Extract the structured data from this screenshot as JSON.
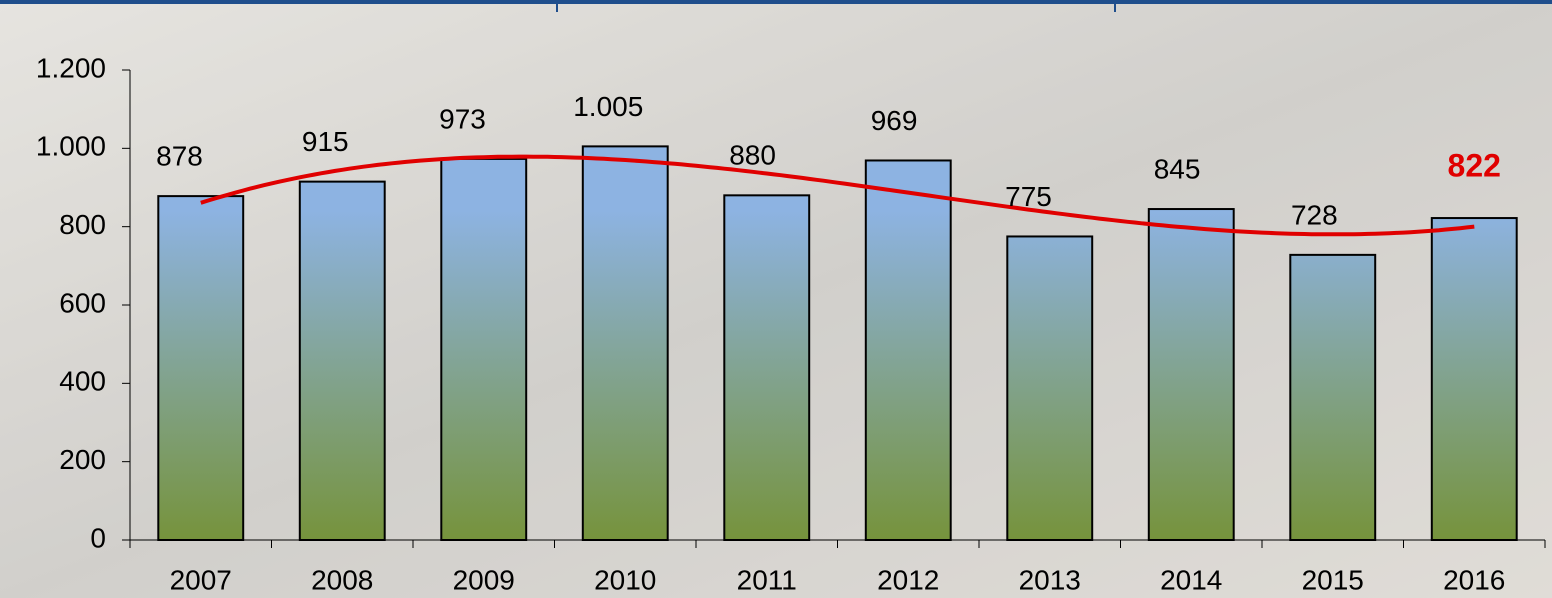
{
  "chart_data": {
    "type": "bar",
    "categories": [
      "2007",
      "2008",
      "2009",
      "2010",
      "2011",
      "2012",
      "2013",
      "2014",
      "2015",
      "2016"
    ],
    "values": [
      878,
      915,
      973,
      1005,
      880,
      969,
      775,
      845,
      728,
      822
    ],
    "value_labels": [
      "878",
      "915",
      "973",
      "1.005",
      "880",
      "969",
      "775",
      "845",
      "728",
      "822"
    ],
    "ylim": [
      0,
      1200
    ],
    "yticks": [
      0,
      200,
      400,
      600,
      800,
      {
        "value": 1000,
        "label": "1.000"
      },
      {
        "value": 1200,
        "label": "1.200"
      }
    ],
    "color_top": "#8db3e2",
    "color_bottom": "#76933c",
    "trendline": {
      "type": "polynomial",
      "order": 3,
      "color": "#e00000"
    },
    "highlight": {
      "index": 9,
      "color": "#e00000"
    }
  }
}
